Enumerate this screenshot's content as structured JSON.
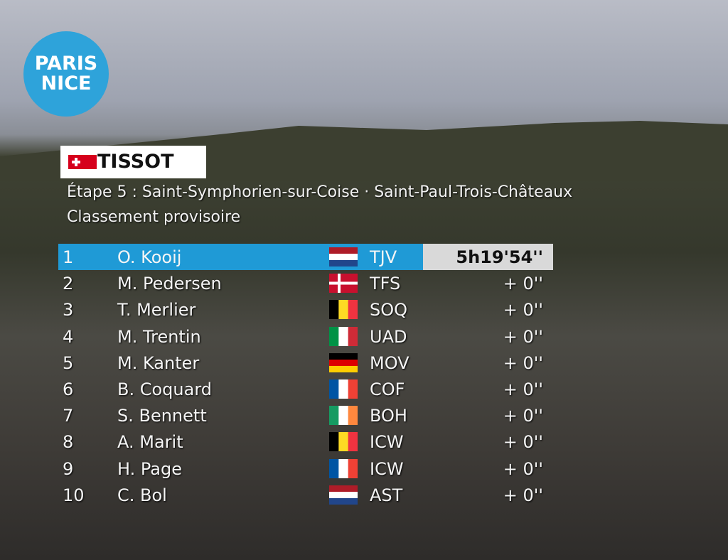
{
  "logo": {
    "line1": "PARIS",
    "line2": "NICE"
  },
  "sponsor": "TISSOT",
  "stage": "Étape 5 : Saint-Symphorien-sur-Coise · Saint-Paul-Trois-Châteaux",
  "subtitle": "Classement provisoire",
  "rows": [
    {
      "rank": 1,
      "name": "O. Kooij",
      "team": "TJV",
      "time": "5h19'54''"
    },
    {
      "rank": 2,
      "name": "M. Pedersen",
      "team": "TFS",
      "time": "+ 0''"
    },
    {
      "rank": 3,
      "name": "T. Merlier",
      "team": "SOQ",
      "time": "+ 0''"
    },
    {
      "rank": 4,
      "name": "M. Trentin",
      "team": "UAD",
      "time": "+ 0''"
    },
    {
      "rank": 5,
      "name": "M. Kanter",
      "team": "MOV",
      "time": "+ 0''"
    },
    {
      "rank": 6,
      "name": "B. Coquard",
      "team": "COF",
      "time": "+ 0''"
    },
    {
      "rank": 7,
      "name": "S. Bennett",
      "team": "BOH",
      "time": "+ 0''"
    },
    {
      "rank": 8,
      "name": "A. Marit",
      "team": "ICW",
      "time": "+ 0''"
    },
    {
      "rank": 9,
      "name": "H. Page",
      "team": "ICW",
      "time": "+ 0''"
    },
    {
      "rank": 10,
      "name": "C. Bol",
      "team": "AST",
      "time": "+ 0''"
    }
  ]
}
